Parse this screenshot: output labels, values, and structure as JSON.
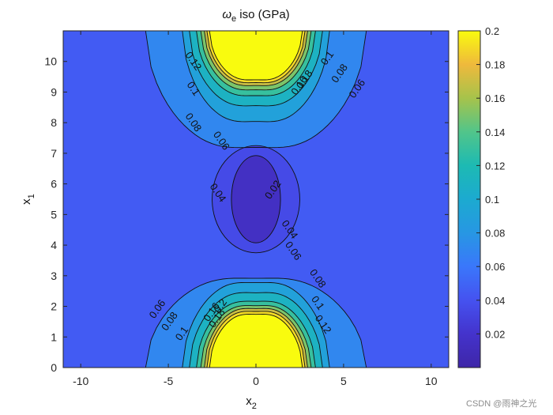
{
  "chart_data": {
    "type": "contour",
    "title_symbol": "ω",
    "title_subscript": "e",
    "title_rest": " iso (GPa)",
    "xlabel": "x",
    "xlabel_subscript": "2",
    "ylabel": "x",
    "ylabel_subscript": "1",
    "xlim": [
      -11,
      11
    ],
    "ylim": [
      0,
      11
    ],
    "xticks": [
      -10,
      -5,
      0,
      5,
      10
    ],
    "yticks": [
      0,
      1,
      2,
      3,
      4,
      5,
      6,
      7,
      8,
      9,
      10
    ],
    "colorbar": {
      "range": [
        0,
        0.2
      ],
      "ticks": [
        "0.02",
        "0.04",
        "0.06",
        "0.08",
        "0.1",
        "0.12",
        "0.14",
        "0.16",
        "0.18",
        "0.2"
      ],
      "colormap": "parula"
    },
    "levels": [
      0.02,
      0.04,
      0.06,
      0.08,
      0.1,
      0.12,
      0.14,
      0.16,
      0.18,
      0.2
    ],
    "background_value": 0.045,
    "contour_labels": [
      {
        "text": "0.02",
        "x": 1.0,
        "y": 5.8
      },
      {
        "text": "0.04",
        "x": -2.2,
        "y": 5.7
      },
      {
        "text": "0.04",
        "x": 1.9,
        "y": 4.5
      },
      {
        "text": "0.06",
        "x": -2.0,
        "y": 7.4
      },
      {
        "text": "0.06",
        "x": 2.1,
        "y": 3.8
      },
      {
        "text": "0.06",
        "x": 5.8,
        "y": 9.1
      },
      {
        "text": "0.06",
        "x": -5.6,
        "y": 1.9
      },
      {
        "text": "0.08",
        "x": -3.6,
        "y": 8.0
      },
      {
        "text": "0.08",
        "x": 4.8,
        "y": 9.6
      },
      {
        "text": "0.08",
        "x": 3.5,
        "y": 2.9
      },
      {
        "text": "0.08",
        "x": -4.9,
        "y": 1.5
      },
      {
        "text": "0.1",
        "x": -3.6,
        "y": 9.1
      },
      {
        "text": "0.1",
        "x": 4.1,
        "y": 10.1
      },
      {
        "text": "0.1",
        "x": 3.5,
        "y": 2.1
      },
      {
        "text": "0.1",
        "x": -4.2,
        "y": 1.1
      },
      {
        "text": "0.12",
        "x": -3.6,
        "y": 10.0
      },
      {
        "text": "0.12",
        "x": 3.8,
        "y": 1.4
      },
      {
        "text": "0.16",
        "x": 2.5,
        "y": 9.2
      },
      {
        "text": "0.18",
        "x": 2.8,
        "y": 9.4
      },
      {
        "text": "0.16",
        "x": -2.5,
        "y": 1.8
      },
      {
        "text": "0.18",
        "x": -2.2,
        "y": 1.6
      },
      {
        "text": "0.2",
        "x": -2.0,
        "y": 2.0
      }
    ]
  },
  "watermark": "CSDN @雨神之光"
}
